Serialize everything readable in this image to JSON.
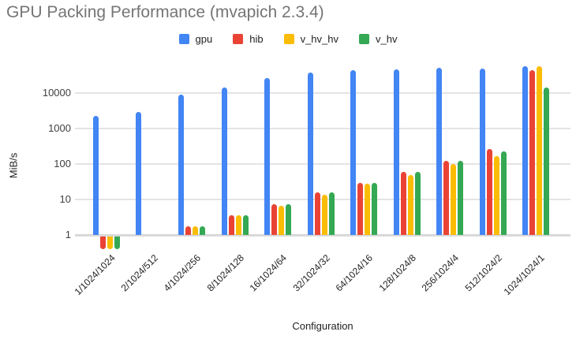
{
  "title": "GPU Packing Performance (mvapich 2.3.4)",
  "chart_data": {
    "type": "bar",
    "title": "GPU Packing Performance (mvapich 2.3.4)",
    "xlabel": "Configuration",
    "ylabel": "MiB/s",
    "y_scale": "log",
    "y_ticks": [
      1,
      10,
      100,
      1000,
      10000
    ],
    "ylim": [
      1,
      60000
    ],
    "grid": true,
    "legend_position": "top",
    "categories": [
      "1/1024/1024",
      "2/1024/512",
      "4/1024/256",
      "8/1024/128",
      "16/1024/64",
      "32/1024/32",
      "64/1024/16",
      "128/1024/8",
      "256/1024/4",
      "512/1024/2",
      "1024/1024/1"
    ],
    "series": [
      {
        "name": "gpu",
        "color": "#4285F4",
        "values": [
          2300,
          2900,
          8800,
          14000,
          26000,
          37000,
          44000,
          47000,
          52000,
          49000,
          57000
        ]
      },
      {
        "name": "hib",
        "color": "#EA4335",
        "values": [
          0.45,
          null,
          1.8,
          3.6,
          7.2,
          16,
          29,
          60,
          125,
          260,
          45000
        ]
      },
      {
        "name": "v_hv_hv",
        "color": "#FBBC04",
        "values": [
          0.45,
          null,
          1.8,
          3.6,
          6.7,
          13.5,
          28,
          48,
          101,
          168,
          57000
        ]
      },
      {
        "name": "v_hv",
        "color": "#34A853",
        "values": [
          0.45,
          null,
          1.8,
          3.6,
          7.2,
          16,
          29,
          60,
          125,
          232,
          14000
        ]
      }
    ]
  }
}
